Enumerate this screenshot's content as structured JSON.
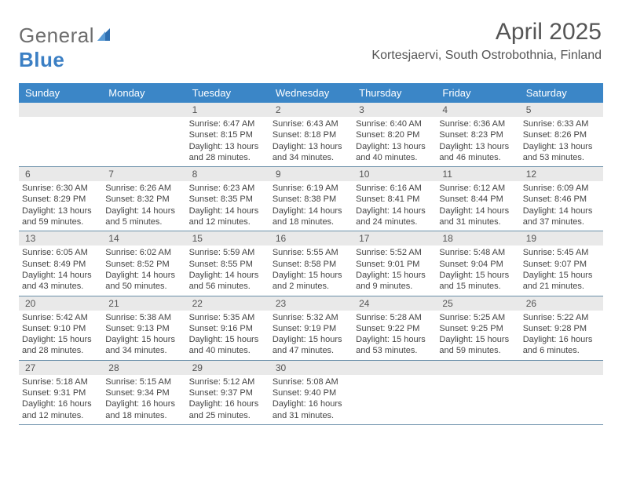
{
  "logo": {
    "text_a": "General",
    "text_b": "Blue"
  },
  "title": "April 2025",
  "location": "Kortesjaervi, South Ostrobothnia, Finland",
  "colors": {
    "header_bg": "#3b86c7",
    "header_fg": "#ffffff",
    "daynum_bg": "#e9e9e9",
    "border": "#6a8fa9",
    "text": "#444444"
  },
  "day_names": [
    "Sunday",
    "Monday",
    "Tuesday",
    "Wednesday",
    "Thursday",
    "Friday",
    "Saturday"
  ],
  "weeks": [
    [
      null,
      null,
      {
        "n": "1",
        "sr": "Sunrise: 6:47 AM",
        "ss": "Sunset: 8:15 PM",
        "dl": "Daylight: 13 hours and 28 minutes."
      },
      {
        "n": "2",
        "sr": "Sunrise: 6:43 AM",
        "ss": "Sunset: 8:18 PM",
        "dl": "Daylight: 13 hours and 34 minutes."
      },
      {
        "n": "3",
        "sr": "Sunrise: 6:40 AM",
        "ss": "Sunset: 8:20 PM",
        "dl": "Daylight: 13 hours and 40 minutes."
      },
      {
        "n": "4",
        "sr": "Sunrise: 6:36 AM",
        "ss": "Sunset: 8:23 PM",
        "dl": "Daylight: 13 hours and 46 minutes."
      },
      {
        "n": "5",
        "sr": "Sunrise: 6:33 AM",
        "ss": "Sunset: 8:26 PM",
        "dl": "Daylight: 13 hours and 53 minutes."
      }
    ],
    [
      {
        "n": "6",
        "sr": "Sunrise: 6:30 AM",
        "ss": "Sunset: 8:29 PM",
        "dl": "Daylight: 13 hours and 59 minutes."
      },
      {
        "n": "7",
        "sr": "Sunrise: 6:26 AM",
        "ss": "Sunset: 8:32 PM",
        "dl": "Daylight: 14 hours and 5 minutes."
      },
      {
        "n": "8",
        "sr": "Sunrise: 6:23 AM",
        "ss": "Sunset: 8:35 PM",
        "dl": "Daylight: 14 hours and 12 minutes."
      },
      {
        "n": "9",
        "sr": "Sunrise: 6:19 AM",
        "ss": "Sunset: 8:38 PM",
        "dl": "Daylight: 14 hours and 18 minutes."
      },
      {
        "n": "10",
        "sr": "Sunrise: 6:16 AM",
        "ss": "Sunset: 8:41 PM",
        "dl": "Daylight: 14 hours and 24 minutes."
      },
      {
        "n": "11",
        "sr": "Sunrise: 6:12 AM",
        "ss": "Sunset: 8:44 PM",
        "dl": "Daylight: 14 hours and 31 minutes."
      },
      {
        "n": "12",
        "sr": "Sunrise: 6:09 AM",
        "ss": "Sunset: 8:46 PM",
        "dl": "Daylight: 14 hours and 37 minutes."
      }
    ],
    [
      {
        "n": "13",
        "sr": "Sunrise: 6:05 AM",
        "ss": "Sunset: 8:49 PM",
        "dl": "Daylight: 14 hours and 43 minutes."
      },
      {
        "n": "14",
        "sr": "Sunrise: 6:02 AM",
        "ss": "Sunset: 8:52 PM",
        "dl": "Daylight: 14 hours and 50 minutes."
      },
      {
        "n": "15",
        "sr": "Sunrise: 5:59 AM",
        "ss": "Sunset: 8:55 PM",
        "dl": "Daylight: 14 hours and 56 minutes."
      },
      {
        "n": "16",
        "sr": "Sunrise: 5:55 AM",
        "ss": "Sunset: 8:58 PM",
        "dl": "Daylight: 15 hours and 2 minutes."
      },
      {
        "n": "17",
        "sr": "Sunrise: 5:52 AM",
        "ss": "Sunset: 9:01 PM",
        "dl": "Daylight: 15 hours and 9 minutes."
      },
      {
        "n": "18",
        "sr": "Sunrise: 5:48 AM",
        "ss": "Sunset: 9:04 PM",
        "dl": "Daylight: 15 hours and 15 minutes."
      },
      {
        "n": "19",
        "sr": "Sunrise: 5:45 AM",
        "ss": "Sunset: 9:07 PM",
        "dl": "Daylight: 15 hours and 21 minutes."
      }
    ],
    [
      {
        "n": "20",
        "sr": "Sunrise: 5:42 AM",
        "ss": "Sunset: 9:10 PM",
        "dl": "Daylight: 15 hours and 28 minutes."
      },
      {
        "n": "21",
        "sr": "Sunrise: 5:38 AM",
        "ss": "Sunset: 9:13 PM",
        "dl": "Daylight: 15 hours and 34 minutes."
      },
      {
        "n": "22",
        "sr": "Sunrise: 5:35 AM",
        "ss": "Sunset: 9:16 PM",
        "dl": "Daylight: 15 hours and 40 minutes."
      },
      {
        "n": "23",
        "sr": "Sunrise: 5:32 AM",
        "ss": "Sunset: 9:19 PM",
        "dl": "Daylight: 15 hours and 47 minutes."
      },
      {
        "n": "24",
        "sr": "Sunrise: 5:28 AM",
        "ss": "Sunset: 9:22 PM",
        "dl": "Daylight: 15 hours and 53 minutes."
      },
      {
        "n": "25",
        "sr": "Sunrise: 5:25 AM",
        "ss": "Sunset: 9:25 PM",
        "dl": "Daylight: 15 hours and 59 minutes."
      },
      {
        "n": "26",
        "sr": "Sunrise: 5:22 AM",
        "ss": "Sunset: 9:28 PM",
        "dl": "Daylight: 16 hours and 6 minutes."
      }
    ],
    [
      {
        "n": "27",
        "sr": "Sunrise: 5:18 AM",
        "ss": "Sunset: 9:31 PM",
        "dl": "Daylight: 16 hours and 12 minutes."
      },
      {
        "n": "28",
        "sr": "Sunrise: 5:15 AM",
        "ss": "Sunset: 9:34 PM",
        "dl": "Daylight: 16 hours and 18 minutes."
      },
      {
        "n": "29",
        "sr": "Sunrise: 5:12 AM",
        "ss": "Sunset: 9:37 PM",
        "dl": "Daylight: 16 hours and 25 minutes."
      },
      {
        "n": "30",
        "sr": "Sunrise: 5:08 AM",
        "ss": "Sunset: 9:40 PM",
        "dl": "Daylight: 16 hours and 31 minutes."
      },
      null,
      null,
      null
    ]
  ]
}
